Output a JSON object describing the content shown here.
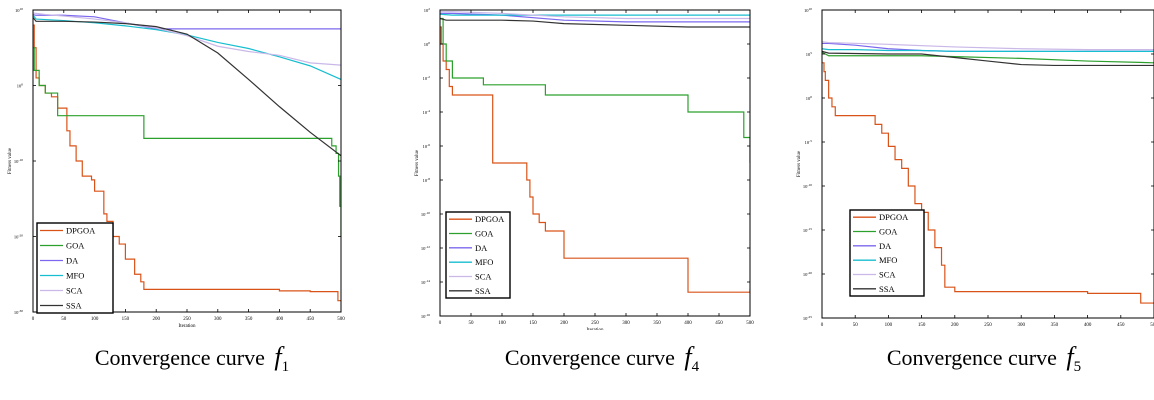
{
  "charts": [
    {
      "id": "f1",
      "caption": "Convergence curve",
      "fn_letter": "f",
      "fn_index": "1",
      "chart_data": {
        "type": "line",
        "xlabel": "Iteration",
        "ylabel": "Fitness value",
        "xlim": [
          0,
          500
        ],
        "ylim_exp": [
          -30,
          10
        ],
        "yscale": "log",
        "xticks": [
          "0",
          "50",
          "100",
          "150",
          "200",
          "250",
          "300",
          "350",
          "400",
          "450",
          "500"
        ],
        "yticks": [
          {
            "exp": 10,
            "label": "10"
          },
          {
            "exp": 0,
            "label": "0"
          },
          {
            "exp": -10,
            "label": "-10"
          },
          {
            "exp": -20,
            "label": "-20"
          },
          {
            "exp": -30,
            "label": "-30"
          }
        ],
        "legend_position": "bottom-left",
        "series": [
          {
            "name": "DPGOA",
            "color": "#d95319",
            "step": true,
            "x": [
              0,
              2,
              5,
              10,
              20,
              30,
              40,
              55,
              60,
              70,
              80,
              95,
              100,
              110,
              115,
              120,
              130,
              140,
              150,
              165,
              175,
              180,
              250,
              330,
              400,
              450,
              495,
              500
            ],
            "y": [
              8,
              5,
              1,
              0,
              -1,
              -1.5,
              -3,
              -6,
              -8,
              -10,
              -12,
              -12.5,
              -14,
              -14,
              -17,
              -18,
              -20,
              -21,
              -23,
              -25,
              -26,
              -27,
              -27,
              -27,
              -27.2,
              -27.3,
              -28.5,
              -28.5
            ]
          },
          {
            "name": "GOA",
            "color": "#2ca02c",
            "step": true,
            "x": [
              0,
              2,
              10,
              20,
              40,
              60,
              70,
              180,
              300,
              460,
              470,
              485,
              492,
              496,
              498,
              500
            ],
            "y": [
              5,
              2,
              0,
              -1,
              -4,
              -4,
              -4,
              -7,
              -7,
              -7,
              -7,
              -8,
              -9,
              -12,
              -16,
              -20
            ]
          },
          {
            "name": "DA",
            "color": "#7b68ee",
            "step": false,
            "x": [
              0,
              5,
              20,
              50,
              100,
              200,
              300,
              400,
              500
            ],
            "y": [
              9.4,
              9.3,
              9.3,
              9.3,
              9.1,
              7.5,
              7.5,
              7.5,
              7.5
            ]
          },
          {
            "name": "MFO",
            "color": "#17becf",
            "step": false,
            "x": [
              0,
              5,
              50,
              100,
              150,
              200,
              250,
              300,
              350,
              400,
              450,
              500
            ],
            "y": [
              9.3,
              8.8,
              8.6,
              8.3,
              7.9,
              7.4,
              6.7,
              5.7,
              4.9,
              3.8,
              2.6,
              0.8
            ]
          },
          {
            "name": "SCA",
            "color": "#c9b8e8",
            "step": false,
            "x": [
              0,
              20,
              50,
              100,
              150,
              200,
              250,
              300,
              350,
              400,
              450,
              500
            ],
            "y": [
              9.6,
              9.4,
              9.2,
              8.8,
              8.3,
              7.6,
              6.6,
              5.2,
              4.5,
              4,
              3,
              2.7
            ]
          },
          {
            "name": "SSA",
            "color": "#333333",
            "step": false,
            "x": [
              0,
              5,
              50,
              100,
              150,
              200,
              250,
              300,
              350,
              400,
              450,
              500
            ],
            "y": [
              9,
              8.5,
              8.5,
              8.4,
              8.2,
              7.8,
              6.8,
              4.3,
              0.8,
              -2.8,
              -6.2,
              -9.3
            ]
          }
        ]
      }
    },
    {
      "id": "f4",
      "caption": "Convergence curve",
      "fn_letter": "f",
      "fn_index": "4",
      "chart_data": {
        "type": "line",
        "xlabel": "Iteration",
        "ylabel": "Fitness value",
        "xlim": [
          0,
          500
        ],
        "ylim_exp": [
          -16,
          2
        ],
        "yscale": "log",
        "xticks": [
          "0",
          "50",
          "100",
          "150",
          "200",
          "250",
          "300",
          "350",
          "400",
          "450",
          "500"
        ],
        "yticks": [
          {
            "exp": 2,
            "label": "2"
          },
          {
            "exp": 0,
            "label": "0"
          },
          {
            "exp": -2,
            "label": "-2"
          },
          {
            "exp": -4,
            "label": "-4"
          },
          {
            "exp": -6,
            "label": "-6"
          },
          {
            "exp": -8,
            "label": "-8"
          },
          {
            "exp": -10,
            "label": "-10"
          },
          {
            "exp": -12,
            "label": "-12"
          },
          {
            "exp": -14,
            "label": "-14"
          },
          {
            "exp": -16,
            "label": "-16"
          }
        ],
        "legend_position": "bottom-left",
        "series": [
          {
            "name": "DPGOA",
            "color": "#d95319",
            "step": true,
            "x": [
              0,
              2,
              5,
              10,
              15,
              20,
              80,
              85,
              130,
              140,
              145,
              150,
              160,
              170,
              200,
              400,
              500
            ],
            "y": [
              1,
              0,
              -1,
              -1.5,
              -2.5,
              -3,
              -3,
              -7,
              -7,
              -8,
              -9,
              -10,
              -10.5,
              -11,
              -12.6,
              -14.6,
              -14.4
            ]
          },
          {
            "name": "GOA",
            "color": "#2ca02c",
            "step": true,
            "x": [
              0,
              5,
              10,
              20,
              70,
              100,
              170,
              175,
              400,
              410,
              490,
              500
            ],
            "y": [
              1.5,
              0,
              -1,
              -2,
              -2.4,
              -2.4,
              -3,
              -3,
              -4,
              -4,
              -5.5,
              -7
            ]
          },
          {
            "name": "DA",
            "color": "#7b68ee",
            "step": false,
            "x": [
              0,
              20,
              100,
              200,
              300,
              400,
              500
            ],
            "y": [
              1.8,
              1.8,
              1.7,
              1.4,
              1.3,
              1.3,
              1.3
            ]
          },
          {
            "name": "MFO",
            "color": "#17becf",
            "step": false,
            "x": [
              0,
              20,
              100,
              200,
              300,
              400,
              500
            ],
            "y": [
              1.75,
              1.7,
              1.7,
              1.7,
              1.7,
              1.7,
              1.7
            ]
          },
          {
            "name": "SCA",
            "color": "#c9b8e8",
            "step": false,
            "x": [
              0,
              20,
              100,
              200,
              300,
              400,
              500
            ],
            "y": [
              1.9,
              1.9,
              1.8,
              1.6,
              1.5,
              1.5,
              1.5
            ]
          },
          {
            "name": "SSA",
            "color": "#333333",
            "step": false,
            "x": [
              0,
              10,
              50,
              100,
              150,
              200,
              300,
              400,
              500
            ],
            "y": [
              1.5,
              1.4,
              1.4,
              1.4,
              1.35,
              1.2,
              1.1,
              1,
              1
            ]
          }
        ]
      }
    },
    {
      "id": "f5",
      "caption": "Convergence curve",
      "fn_letter": "f",
      "fn_index": "5",
      "chart_data": {
        "type": "line",
        "xlabel": "Iteration",
        "ylabel": "Fitness value",
        "xlim": [
          0,
          500
        ],
        "ylim_exp": [
          -25,
          10
        ],
        "yscale": "log",
        "xticks": [
          "0",
          "50",
          "100",
          "150",
          "200",
          "250",
          "300",
          "350",
          "400",
          "450",
          "500"
        ],
        "yticks": [
          {
            "exp": 10,
            "label": "10"
          },
          {
            "exp": 5,
            "label": "5"
          },
          {
            "exp": 0,
            "label": "0"
          },
          {
            "exp": -5,
            "label": "-5"
          },
          {
            "exp": -10,
            "label": "-10"
          },
          {
            "exp": -15,
            "label": "-15"
          },
          {
            "exp": -20,
            "label": "-20"
          },
          {
            "exp": -25,
            "label": "-25"
          }
        ],
        "legend_position": "bottom-left",
        "series": [
          {
            "name": "DPGOA",
            "color": "#d95319",
            "step": true,
            "x": [
              0,
              3,
              5,
              10,
              15,
              20,
              70,
              80,
              90,
              100,
              110,
              120,
              130,
              140,
              150,
              160,
              170,
              180,
              185,
              200,
              250,
              300,
              400,
              480,
              500
            ],
            "y": [
              4,
              3,
              2,
              0,
              -1,
              -2,
              -2,
              -3,
              -4,
              -5.5,
              -7,
              -8,
              -10,
              -12,
              -13,
              -15,
              -17,
              -19,
              -21.5,
              -22,
              -22,
              -22,
              -22.2,
              -23.3,
              -23.3
            ]
          },
          {
            "name": "GOA",
            "color": "#2ca02c",
            "step": false,
            "x": [
              0,
              10,
              50,
              100,
              150,
              200,
              300,
              400,
              500
            ],
            "y": [
              5.2,
              4.8,
              4.8,
              4.8,
              4.8,
              4.7,
              4.5,
              4.2,
              4
            ]
          },
          {
            "name": "DA",
            "color": "#7b68ee",
            "step": false,
            "x": [
              0,
              10,
              50,
              100,
              150,
              200,
              300,
              400,
              500
            ],
            "y": [
              6.2,
              6.2,
              6,
              5.6,
              5.4,
              5.3,
              5.3,
              5.3,
              5.3
            ]
          },
          {
            "name": "MFO",
            "color": "#17becf",
            "step": false,
            "x": [
              0,
              10,
              50,
              100,
              150,
              200,
              300,
              400,
              500
            ],
            "y": [
              5.6,
              5.5,
              5.5,
              5.4,
              5.4,
              5.3,
              5.3,
              5.3,
              5.3
            ]
          },
          {
            "name": "SCA",
            "color": "#c9b8e8",
            "step": false,
            "x": [
              0,
              10,
              100,
              200,
              300,
              400,
              500
            ],
            "y": [
              6.4,
              6.3,
              6.1,
              5.8,
              5.6,
              5.5,
              5.5
            ]
          },
          {
            "name": "SSA",
            "color": "#333333",
            "step": false,
            "x": [
              0,
              10,
              100,
              150,
              200,
              250,
              300,
              350,
              400,
              500
            ],
            "y": [
              5.3,
              5.1,
              5,
              5,
              4.6,
              4.2,
              3.8,
              3.7,
              3.7,
              3.7
            ]
          }
        ]
      }
    }
  ]
}
